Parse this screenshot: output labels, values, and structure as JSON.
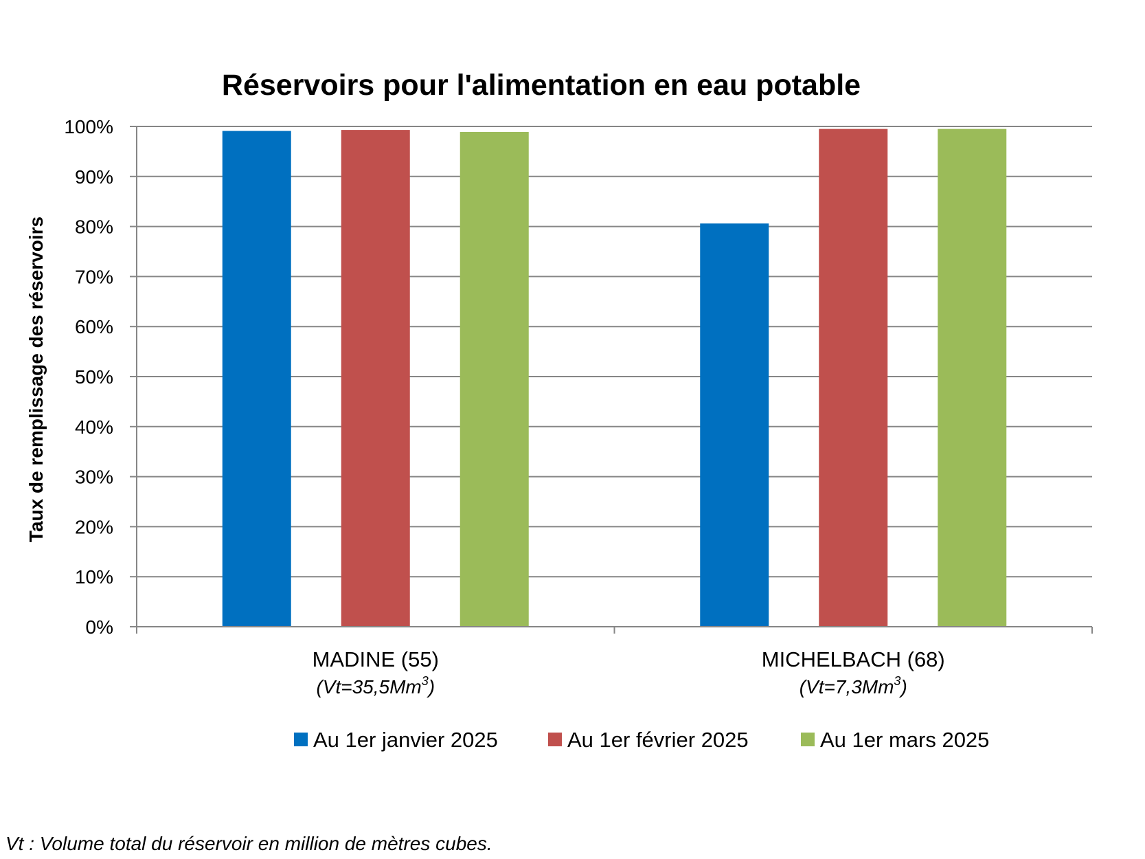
{
  "chart_data": {
    "type": "bar",
    "title": "Réservoirs pour l'alimentation en eau potable",
    "ylabel": "Taux de remplissage des réservoirs",
    "xlabel": "",
    "ylim": [
      0,
      100
    ],
    "y_ticks": [
      "0%",
      "10%",
      "20%",
      "30%",
      "40%",
      "50%",
      "60%",
      "70%",
      "80%",
      "90%",
      "100%"
    ],
    "categories": [
      {
        "name": "MADINE (55)",
        "sub_prefix": "(Vt=35,5Mm",
        "sub_sup": "3",
        "sub_suffix": ")"
      },
      {
        "name": "MICHELBACH (68)",
        "sub_prefix": "(Vt=7,3Mm",
        "sub_sup": "3",
        "sub_suffix": ")"
      }
    ],
    "series": [
      {
        "name": "Au 1er janvier 2025",
        "color": "#0070c0",
        "values": [
          99.1,
          80.6
        ]
      },
      {
        "name": "Au 1er février 2025",
        "color": "#c0504d",
        "values": [
          99.3,
          99.5
        ]
      },
      {
        "name": "Au 1er mars 2025",
        "color": "#9bbb59",
        "values": [
          98.9,
          99.5
        ]
      }
    ],
    "grid": true,
    "legend_position": "bottom"
  },
  "footnote": "Vt : Volume total du réservoir en million de mètres cubes."
}
